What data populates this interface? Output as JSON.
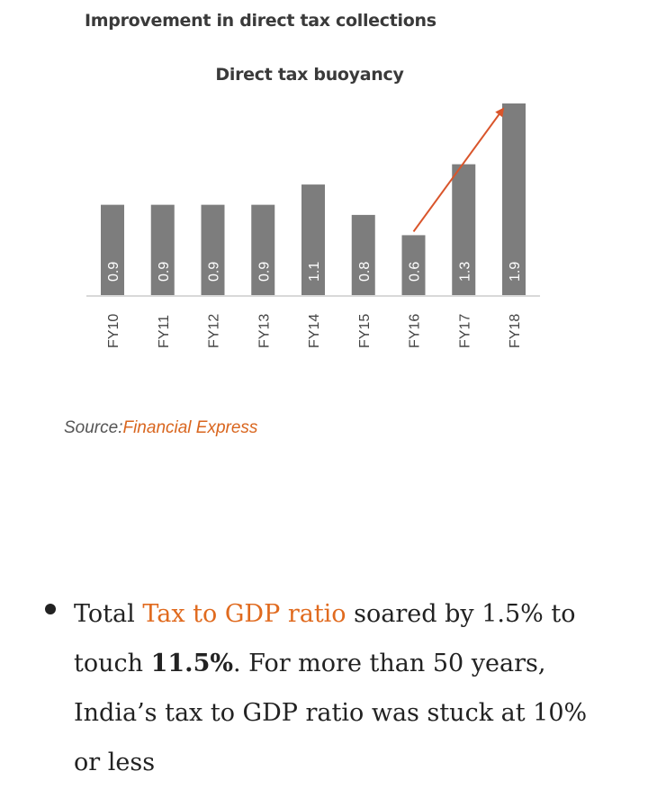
{
  "chart_data": {
    "type": "bar",
    "title": "Improvement in direct tax collections",
    "subtitle": "Direct tax buoyancy",
    "categories": [
      "FY10",
      "FY11",
      "FY12",
      "FY13",
      "FY14",
      "FY15",
      "FY16",
      "FY17",
      "FY18"
    ],
    "values": [
      0.9,
      0.9,
      0.9,
      0.9,
      1.1,
      0.8,
      0.6,
      1.3,
      1.9
    ],
    "data_labels": [
      "0.9",
      "0.9",
      "0.9",
      "0.9",
      "1.1",
      "0.8",
      "0.6",
      "1.3",
      "1.9"
    ],
    "ylim": [
      0,
      1.9
    ],
    "grid": false,
    "annotation": "trend arrow from FY16 to FY18",
    "colors": {
      "bar": "#7d7d7d",
      "arrow": "#d9552b",
      "bar_label": "#ffffff",
      "tick_label": "#444444"
    }
  },
  "source": {
    "prefix": "Source:",
    "link_text": "Financial Express"
  },
  "bullet": {
    "text_before": "Total ",
    "link_text": "Tax to GDP ratio",
    "text_mid": " soared by 1.5% to touch ",
    "bold_text": "11.5%",
    "text_after": ". For more than 50 years, India’s tax to GDP ratio was stuck at 10% or less"
  },
  "colors": {
    "accent": "#e06a1e",
    "body_text": "#222222"
  }
}
